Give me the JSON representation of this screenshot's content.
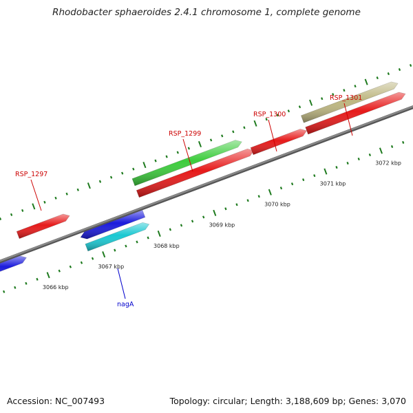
{
  "title": "Rhodobacter sphaeroides 2.4.1 chromosome 1, complete genome",
  "footer": {
    "accession": "Accession: NC_007493",
    "info": "Topology: circular; Length: 3,188,609 bp; Genes: 3,070"
  },
  "colors": {
    "backbone": "#888888",
    "tick": "#1e7a1e",
    "label_red": "#cc0000",
    "label_blue": "#0000cc"
  },
  "kbp_labels": [
    {
      "name": "kbp-3066",
      "text": "3066 kbp"
    },
    {
      "name": "kbp-3067",
      "text": "3067 kbp"
    },
    {
      "name": "kbp-3068",
      "text": "3068 kbp"
    },
    {
      "name": "kbp-3069",
      "text": "3069 kbp"
    },
    {
      "name": "kbp-3070",
      "text": "3070 kbp"
    },
    {
      "name": "kbp-3071",
      "text": "3071 kbp"
    },
    {
      "name": "kbp-3072",
      "text": "3072 kbp"
    }
  ],
  "gene_labels": [
    {
      "name": "label-rsp-1297",
      "text": "RSP_1297",
      "color": "#cc0000"
    },
    {
      "name": "label-rsp-1299",
      "text": "RSP_1299",
      "color": "#cc0000"
    },
    {
      "name": "label-rsp-1300",
      "text": "RSP_1300",
      "color": "#cc0000"
    },
    {
      "name": "label-rsp-1301",
      "text": "RSP_1301",
      "color": "#cc0000"
    },
    {
      "name": "label-naga",
      "text": "nagA",
      "color": "#0000cc"
    }
  ],
  "genes": [
    {
      "name": "gene-blue-left",
      "color": "#1a1adc"
    },
    {
      "name": "gene-rsp-1297",
      "color": "#e61a1a"
    },
    {
      "name": "gene-blue-naga",
      "color": "#1a1adc"
    },
    {
      "name": "gene-naga",
      "color": "#1ac8d2"
    },
    {
      "name": "gene-rsp-1299",
      "color": "#3ccc3c"
    },
    {
      "name": "gene-rsp-1298",
      "color": "#e61a1a"
    },
    {
      "name": "gene-rsp-1300",
      "color": "#e61a1a"
    },
    {
      "name": "gene-rsp-1302",
      "color": "#e61a1a"
    },
    {
      "name": "gene-rsp-1301",
      "color": "#bdb680"
    }
  ]
}
